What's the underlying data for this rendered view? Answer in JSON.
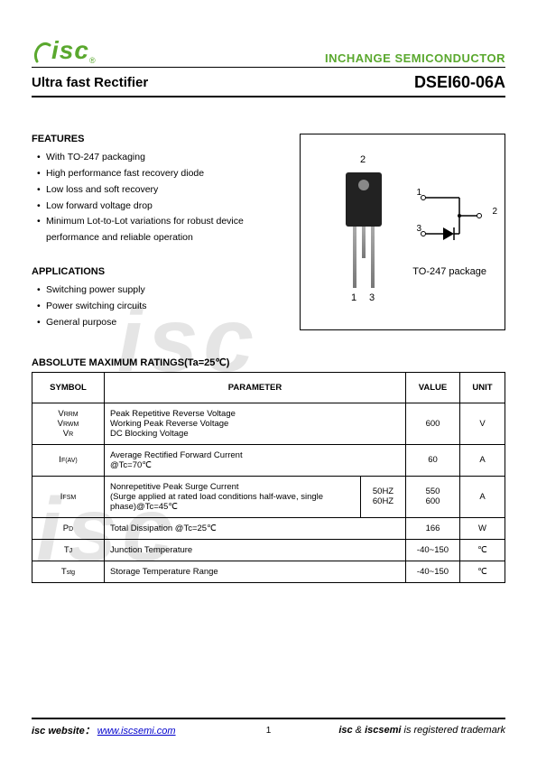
{
  "header": {
    "logo": "isc",
    "company": "INCHANGE SEMICONDUCTOR",
    "subtitle_left": "Ultra fast Rectifier",
    "subtitle_right": "DSEI60-06A"
  },
  "features": {
    "title": "FEATURES",
    "items": [
      "With TO-247 packaging",
      "High performance fast recovery diode",
      "Low loss and soft recovery",
      "Low forward voltage drop",
      "Minimum Lot-to-Lot variations for robust device",
      "performance and reliable operation"
    ]
  },
  "applications": {
    "title": "APPLICATIONS",
    "items": [
      "Switching power supply",
      "Power switching circuits",
      "General purpose"
    ]
  },
  "package": {
    "pins": {
      "p1": "1",
      "p2": "2",
      "p3": "3"
    },
    "caption": "TO-247 package"
  },
  "ratings": {
    "title": "ABSOLUTE MAXIMUM RATINGS(Ta=25℃)",
    "columns": [
      "SYMBOL",
      "PARAMETER",
      "VALUE",
      "UNIT"
    ],
    "rows": [
      {
        "symbol_html": "V<span class='sym-sub'>RRM</span><br>V<span class='sym-sub'>RWM</span><br>V<span class='sym-sub'>R</span>",
        "parameter": "Peak Repetitive Reverse Voltage\nWorking Peak Reverse Voltage\nDC Blocking Voltage",
        "cond": "",
        "value": "600",
        "unit": "V"
      },
      {
        "symbol_html": "I<span class='sym-sub'>F(AV)</span>",
        "parameter": "Average Rectified Forward Current\n@Tc=70℃",
        "cond": "",
        "value": "60",
        "unit": "A"
      },
      {
        "symbol_html": "I<span class='sym-sub'>FSM</span>",
        "parameter": "Nonrepetitive Peak Surge Current\n(Surge applied at rated load conditions half-wave, single phase)@Tc=45℃",
        "cond": "50HZ\n60HZ",
        "value": "550\n600",
        "unit": "A"
      },
      {
        "symbol_html": "P<span class='sym-sub'>D</span>",
        "parameter": "Total Dissipation @Tc=25℃",
        "cond": "",
        "value": "166",
        "unit": "W"
      },
      {
        "symbol_html": "T<span class='sym-sub'>J</span>",
        "parameter": "Junction Temperature",
        "cond": "",
        "value": "-40~150",
        "unit": "℃"
      },
      {
        "symbol_html": "T<span class='sym-sub'>stg</span>",
        "parameter": "Storage Temperature Range",
        "cond": "",
        "value": "-40~150",
        "unit": "℃"
      }
    ]
  },
  "footer": {
    "left_label": "isc website：",
    "link": "www.iscsemi.com",
    "page": "1",
    "right": "isc & iscsemi is registered trademark"
  },
  "watermark": "isc"
}
